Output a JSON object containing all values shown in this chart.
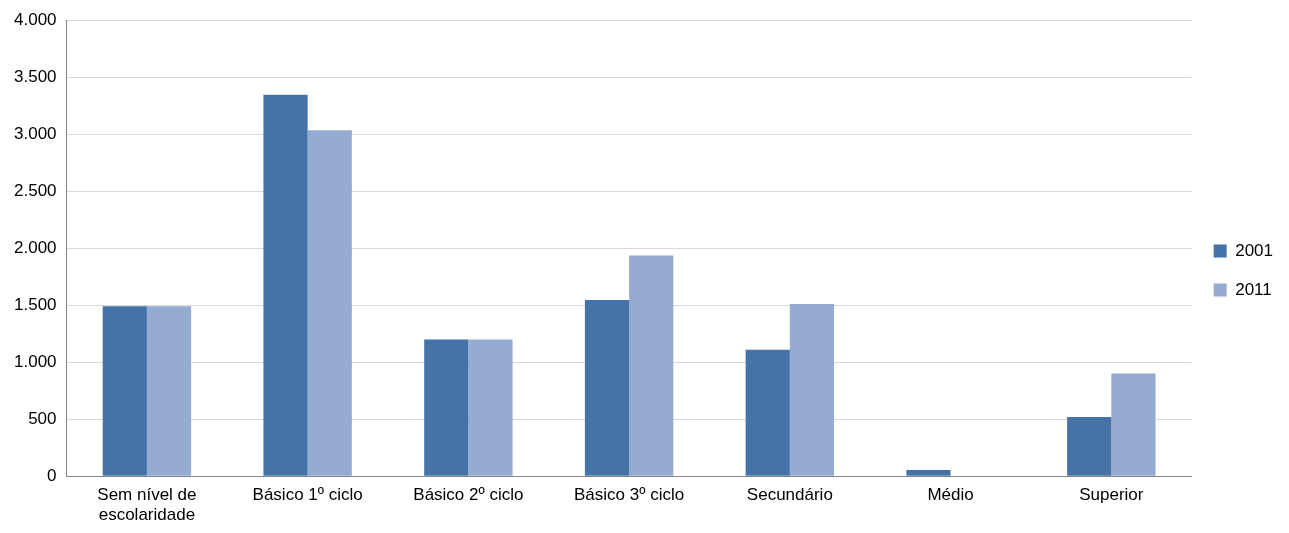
{
  "chart_data": {
    "type": "bar",
    "categories": [
      "Sem nível de escolaridade",
      "Básico 1º ciclo",
      "Básico 2º ciclo",
      "Básico 3º ciclo",
      "Secundário",
      "Médio",
      "Superior"
    ],
    "series": [
      {
        "name": "2001",
        "color": "#4573a7",
        "values": [
          1490,
          3345,
          1200,
          1545,
          1110,
          55,
          520
        ]
      },
      {
        "name": "2011",
        "color": "#95abd2",
        "values": [
          1490,
          3035,
          1200,
          1935,
          1510,
          0,
          900
        ]
      }
    ],
    "ylim": [
      0,
      4000
    ],
    "yticks": [
      {
        "value": 0,
        "label": "0"
      },
      {
        "value": 500,
        "label": "500"
      },
      {
        "value": 1000,
        "label": "1.000"
      },
      {
        "value": 1500,
        "label": "1.500"
      },
      {
        "value": 2000,
        "label": "2.000"
      },
      {
        "value": 2500,
        "label": "2.500"
      },
      {
        "value": 3000,
        "label": "3.000"
      },
      {
        "value": 3500,
        "label": "3.500"
      },
      {
        "value": 4000,
        "label": "4.000"
      }
    ],
    "grid": "y",
    "legend": "right"
  }
}
